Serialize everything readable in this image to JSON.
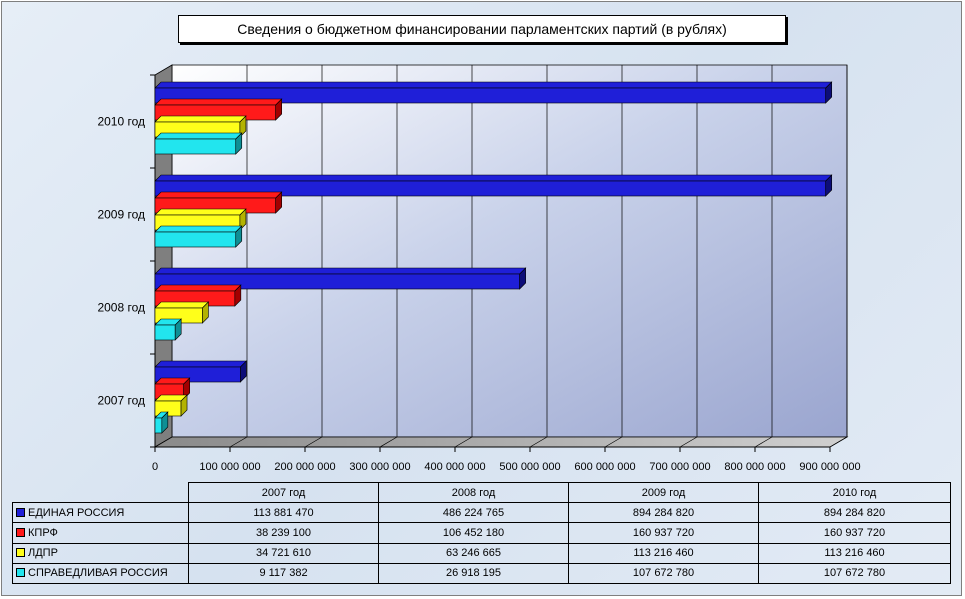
{
  "title": "Сведения о бюджетном финансировании парламентских партий (в рублях)",
  "colors": {
    "series": [
      "#1f1fd8",
      "#ff1a1a",
      "#ffff1a",
      "#22e5ee"
    ],
    "series_dark": [
      "#0d0d78",
      "#a30000",
      "#b3b300",
      "#0e8f95"
    ]
  },
  "chart_data": {
    "type": "bar",
    "orientation": "horizontal",
    "title": "Сведения о бюджетном финансировании парламентских партий (в рублях)",
    "categories": [
      "2007 год",
      "2008 год",
      "2009 год",
      "2010 год"
    ],
    "series": [
      {
        "name": "ЕДИНАЯ РОССИЯ",
        "values": [
          113881470,
          486224765,
          894284820,
          894284820
        ]
      },
      {
        "name": "КПРФ",
        "values": [
          38239100,
          106452180,
          160937720,
          160937720
        ]
      },
      {
        "name": "ЛДПР",
        "values": [
          34721610,
          63246665,
          113216460,
          113216460
        ]
      },
      {
        "name": "СПРАВЕДЛИВАЯ РОССИЯ",
        "values": [
          9117382,
          26918195,
          107672780,
          107672780
        ]
      }
    ],
    "xlim": [
      0,
      900000000
    ],
    "xticks": [
      0,
      100000000,
      200000000,
      300000000,
      400000000,
      500000000,
      600000000,
      700000000,
      800000000,
      900000000
    ],
    "xtick_labels": [
      "0",
      "100 000 000",
      "200 000 000",
      "300 000 000",
      "400 000 000",
      "500 000 000",
      "600 000 000",
      "700 000 000",
      "800 000 000",
      "900 000 000"
    ],
    "grid": true,
    "legend": "data-table"
  },
  "table": {
    "headers": [
      "2007 год",
      "2008 год",
      "2009 год",
      "2010 год"
    ],
    "rows": [
      {
        "name": "ЕДИНАЯ РОССИЯ",
        "values": [
          "113 881 470",
          "486 224 765",
          "894 284 820",
          "894 284 820"
        ]
      },
      {
        "name": "КПРФ",
        "values": [
          "38 239 100",
          "106 452 180",
          "160 937 720",
          "160 937 720"
        ]
      },
      {
        "name": "ЛДПР",
        "values": [
          "34 721 610",
          "63 246 665",
          "113 216 460",
          "113 216 460"
        ]
      },
      {
        "name": "СПРАВЕДЛИВАЯ РОССИЯ",
        "values": [
          "9 117 382",
          "26 918 195",
          "107 672 780",
          "107 672 780"
        ]
      }
    ]
  }
}
